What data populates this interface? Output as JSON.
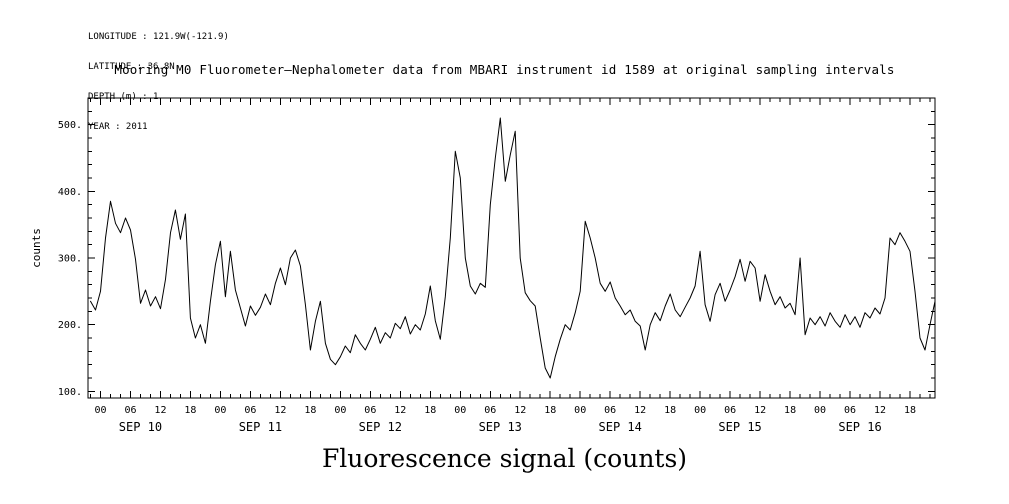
{
  "header_meta": {
    "lines": [
      "LONGITUDE : 121.9W(-121.9)",
      "LATITUDE : 36.8N",
      "DEPTH (m) : 1",
      "YEAR : 2011"
    ]
  },
  "title": "Mooring M0 Fluorometer–Nephalometer data from MBARI instrument id 1589 at original sampling intervals",
  "caption": "Fluorescence signal (counts)",
  "chart_data": {
    "type": "line",
    "title": "Mooring M0 Fluorometer–Nephalometer data from MBARI instrument id 1589 at original sampling intervals",
    "ylabel": "counts",
    "xlabel": "Fluorescence signal (counts)",
    "grid": false,
    "line_color": "#000000",
    "ylim": [
      90,
      540
    ],
    "y_ticks": [
      100,
      200,
      300,
      400,
      500
    ],
    "y_tick_labels": [
      "100.",
      "200.",
      "300.",
      "400.",
      "500."
    ],
    "y_minor_step": 20,
    "xlim_hours": [
      -2.5,
      167
    ],
    "x_major_step_hours": 6,
    "x_minor_step_hours": 2,
    "hour_tick_labels": [
      "00",
      "06",
      "12",
      "18"
    ],
    "day_labels": [
      "SEP 10",
      "SEP 11",
      "SEP 12",
      "SEP 13",
      "SEP 14",
      "SEP 15",
      "SEP 16"
    ],
    "day_label_center_hour": 8,
    "x_start_hours": -2,
    "x_step_hours": 1,
    "series": [
      {
        "name": "fluorescence_counts",
        "values": [
          235,
          222,
          250,
          330,
          385,
          352,
          338,
          360,
          342,
          298,
          232,
          252,
          228,
          242,
          224,
          268,
          338,
          372,
          328,
          366,
          210,
          180,
          200,
          172,
          235,
          290,
          325,
          242,
          310,
          252,
          225,
          198,
          228,
          214,
          226,
          246,
          230,
          262,
          285,
          260,
          300,
          312,
          288,
          230,
          162,
          205,
          235,
          172,
          148,
          140,
          152,
          168,
          158,
          185,
          172,
          162,
          178,
          196,
          172,
          188,
          180,
          202,
          194,
          212,
          186,
          200,
          192,
          216,
          258,
          206,
          178,
          242,
          330,
          460,
          420,
          300,
          258,
          246,
          262,
          256,
          380,
          450,
          510,
          415,
          455,
          490,
          300,
          248,
          236,
          228,
          180,
          135,
          120,
          152,
          178,
          200,
          192,
          218,
          250,
          355,
          330,
          300,
          262,
          250,
          264,
          240,
          228,
          215,
          222,
          205,
          198,
          162,
          200,
          218,
          206,
          228,
          246,
          222,
          212,
          226,
          240,
          258,
          310,
          230,
          205,
          245,
          262,
          235,
          252,
          272,
          298,
          265,
          295,
          285,
          235,
          275,
          250,
          230,
          242,
          225,
          232,
          215,
          300,
          185,
          210,
          200,
          212,
          198,
          218,
          205,
          196,
          215,
          200,
          212,
          196,
          218,
          210,
          225,
          216,
          240,
          330,
          320,
          338,
          325,
          310,
          250,
          180,
          162,
          200,
          235
        ]
      }
    ]
  }
}
